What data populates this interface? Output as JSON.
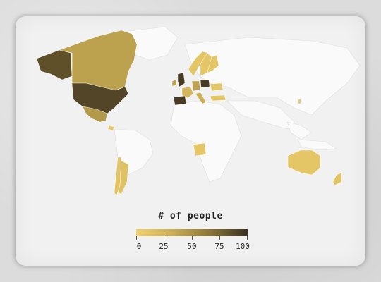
{
  "legend": {
    "title": "# of people",
    "ticks": [
      "0",
      "25",
      "50",
      "75",
      "100"
    ],
    "colors": [
      "#f0d16e",
      "#c9ad55",
      "#8a7536",
      "#3b3120"
    ]
  },
  "regions": [
    {
      "name": "Canada",
      "level": 40
    },
    {
      "name": "Alaska",
      "level": 85
    },
    {
      "name": "United States",
      "level": 90
    },
    {
      "name": "Mexico",
      "level": 45
    },
    {
      "name": "Costa Rica",
      "level": 10
    },
    {
      "name": "Chile",
      "level": 12
    },
    {
      "name": "Argentina",
      "level": 15
    },
    {
      "name": "Norway",
      "level": 10
    },
    {
      "name": "Sweden",
      "level": 10
    },
    {
      "name": "Finland",
      "level": 10
    },
    {
      "name": "United Kingdom",
      "level": 95
    },
    {
      "name": "Ireland",
      "level": 40
    },
    {
      "name": "France",
      "level": 25
    },
    {
      "name": "Spain",
      "level": 95
    },
    {
      "name": "Germany",
      "level": 40
    },
    {
      "name": "Poland",
      "level": 95
    },
    {
      "name": "Italy",
      "level": 30
    },
    {
      "name": "Turkey",
      "level": 10
    },
    {
      "name": "Ukraine",
      "level": 10
    },
    {
      "name": "Angola",
      "level": 10
    },
    {
      "name": "Taiwan",
      "level": 10
    },
    {
      "name": "Australia",
      "level": 10
    },
    {
      "name": "New Zealand",
      "level": 12
    }
  ]
}
